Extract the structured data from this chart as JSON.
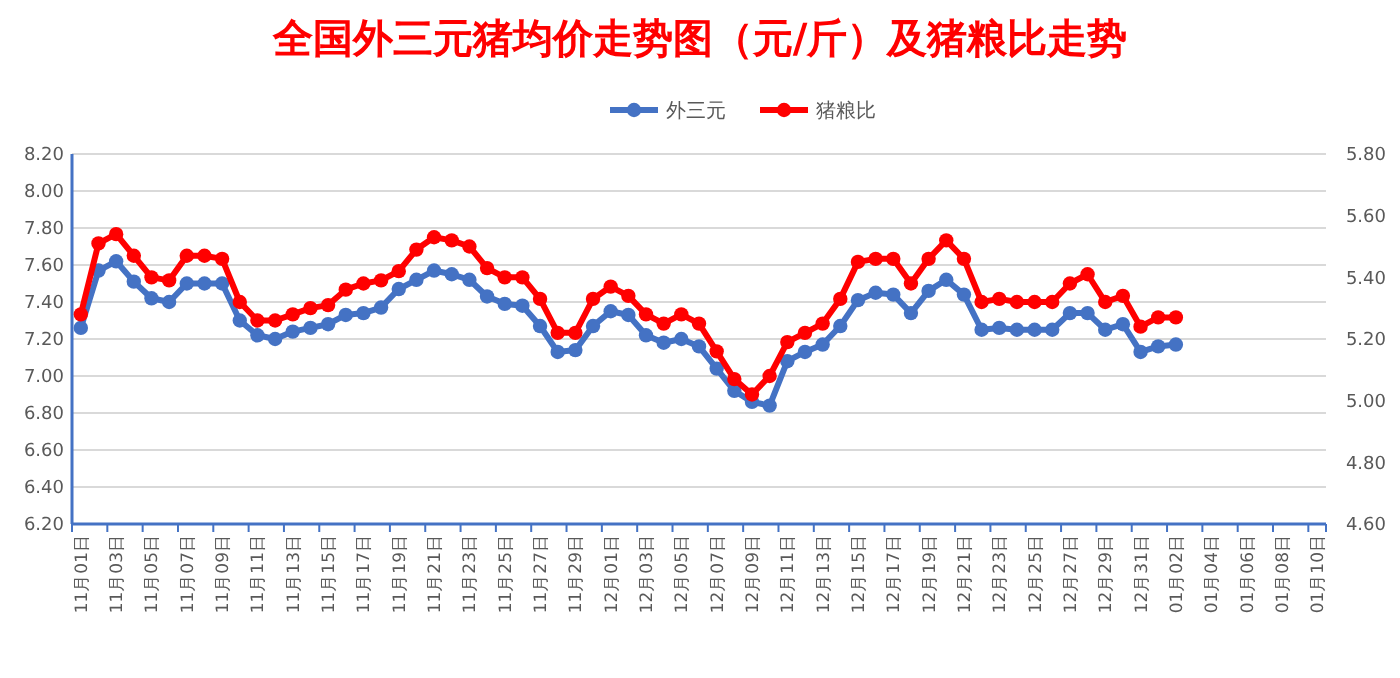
{
  "chart_data": {
    "type": "line",
    "title": "全国外三元猪均价走势图（元/斤）及猪粮比走势",
    "categories": [
      "11月01日",
      null,
      "11月03日",
      null,
      "11月05日",
      null,
      "11月07日",
      null,
      "11月09日",
      null,
      "11月11日",
      null,
      "11月13日",
      null,
      "11月15日",
      null,
      "11月17日",
      null,
      "11月19日",
      null,
      "11月21日",
      null,
      "11月23日",
      null,
      "11月25日",
      null,
      "11月27日",
      null,
      "11月29日",
      null,
      "12月01日",
      null,
      "12月03日",
      null,
      "12月05日",
      null,
      "12月07日",
      null,
      "12月09日",
      null,
      "12月11日",
      null,
      "12月13日",
      null,
      "12月15日",
      null,
      "12月17日",
      null,
      "12月19日",
      null,
      "12月21日",
      null,
      "12月23日",
      null,
      "12月25日",
      null,
      "12月27日",
      null,
      "12月29日",
      null,
      "12月31日",
      null,
      "01月02日",
      null,
      "01月04日",
      null,
      "01月06日",
      null,
      "01月08日",
      null,
      "01月10日"
    ],
    "series": [
      {
        "name": "外三元",
        "color": "#4472c4",
        "values": [
          7.26,
          7.57,
          7.62,
          7.51,
          7.42,
          7.4,
          7.5,
          7.5,
          7.5,
          7.3,
          7.22,
          7.2,
          7.24,
          7.26,
          7.28,
          7.33,
          7.34,
          7.37,
          7.47,
          7.52,
          7.57,
          7.55,
          7.52,
          7.43,
          7.39,
          7.38,
          7.27,
          7.13,
          7.14,
          7.27,
          7.35,
          7.33,
          7.22,
          7.18,
          7.2,
          7.16,
          7.04,
          6.92,
          6.86,
          6.84,
          7.08,
          7.13,
          7.17,
          7.27,
          7.41,
          7.45,
          7.44,
          7.34,
          7.46,
          7.52,
          7.44,
          7.25,
          7.26,
          7.25,
          7.25,
          7.25,
          7.34,
          7.34,
          7.25,
          7.28,
          7.13,
          7.16,
          7.17,
          null,
          null,
          null,
          null,
          null,
          null,
          null,
          null
        ]
      },
      {
        "name": "猪粮比",
        "color": "#ff0000",
        "axis": "y2",
        "values": [
          5.28,
          5.51,
          5.54,
          5.47,
          5.4,
          5.39,
          5.47,
          5.47,
          5.46,
          5.32,
          5.26,
          5.26,
          5.28,
          5.3,
          5.31,
          5.36,
          5.38,
          5.39,
          5.42,
          5.49,
          5.53,
          5.52,
          5.5,
          5.43,
          5.4,
          5.4,
          5.33,
          5.22,
          5.22,
          5.33,
          5.37,
          5.34,
          5.28,
          5.25,
          5.28,
          5.25,
          5.16,
          5.07,
          5.02,
          5.08,
          5.19,
          5.22,
          5.25,
          5.33,
          5.45,
          5.46,
          5.46,
          5.38,
          5.46,
          5.52,
          5.46,
          5.32,
          5.33,
          5.32,
          5.32,
          5.32,
          5.38,
          5.41,
          5.32,
          5.34,
          5.24,
          5.27,
          5.27,
          null,
          null,
          null,
          null,
          null,
          null,
          null,
          null
        ]
      }
    ],
    "ylim": [
      6.2,
      8.2
    ],
    "yticks": [
      {
        "value": 6.2,
        "label": "6.20"
      },
      {
        "value": 6.4,
        "label": "6.40"
      },
      {
        "value": 6.6,
        "label": "6.60"
      },
      {
        "value": 6.8,
        "label": "6.80"
      },
      {
        "value": 7.0,
        "label": "7.00"
      },
      {
        "value": 7.2,
        "label": "7.20"
      },
      {
        "value": 7.4,
        "label": "7.40"
      },
      {
        "value": 7.6,
        "label": "7.60"
      },
      {
        "value": 7.8,
        "label": "7.80"
      },
      {
        "value": 8.0,
        "label": "8.00"
      },
      {
        "value": 8.2,
        "label": "8.20"
      }
    ],
    "y2lim": [
      4.6,
      5.8
    ],
    "y2ticks": [
      {
        "value": 4.6,
        "label": "4.60"
      },
      {
        "value": 4.8,
        "label": "4.80"
      },
      {
        "value": 5.0,
        "label": "5.00"
      },
      {
        "value": 5.2,
        "label": "5.20"
      },
      {
        "value": 5.4,
        "label": "5.40"
      },
      {
        "value": 5.6,
        "label": "5.60"
      },
      {
        "value": 5.8,
        "label": "5.80"
      }
    ],
    "grid": "y",
    "legend": "top",
    "marker": "circle",
    "line_style": "solid"
  }
}
